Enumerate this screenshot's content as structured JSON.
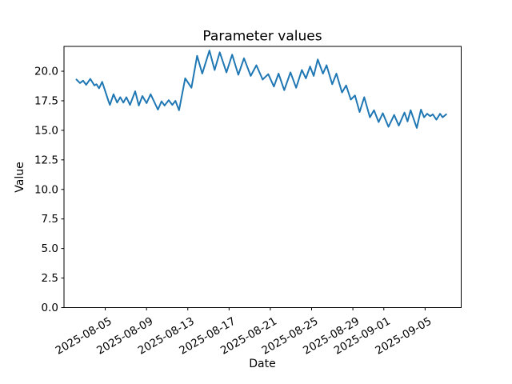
{
  "chart_data": {
    "type": "line",
    "title": "Parameter values",
    "xlabel": "Date",
    "ylabel": "Value",
    "legend": "none",
    "grid": false,
    "background_color": "#ffffff",
    "line_color": "#1f77b4",
    "line_width": 2,
    "x_unit": "days since 2025-08-01 00:00",
    "xlim_days": [
      0,
      38.5
    ],
    "ylim": [
      0,
      22.1
    ],
    "x_ticks": [
      {
        "day": 4,
        "label": "2025-08-05"
      },
      {
        "day": 8,
        "label": "2025-08-09"
      },
      {
        "day": 12,
        "label": "2025-08-13"
      },
      {
        "day": 16,
        "label": "2025-08-17"
      },
      {
        "day": 20,
        "label": "2025-08-21"
      },
      {
        "day": 24,
        "label": "2025-08-25"
      },
      {
        "day": 28,
        "label": "2025-08-29"
      },
      {
        "day": 31,
        "label": "2025-09-01"
      },
      {
        "day": 35,
        "label": "2025-09-05"
      }
    ],
    "x_tick_rotation_deg": 30,
    "y_ticks": [
      {
        "value": 0.0,
        "label": "0.0"
      },
      {
        "value": 2.5,
        "label": "2.5"
      },
      {
        "value": 5.0,
        "label": "5.0"
      },
      {
        "value": 7.5,
        "label": "7.5"
      },
      {
        "value": 10.0,
        "label": "10.0"
      },
      {
        "value": 12.5,
        "label": "12.5"
      },
      {
        "value": 15.0,
        "label": "15.0"
      },
      {
        "value": 17.5,
        "label": "17.5"
      },
      {
        "value": 20.0,
        "label": "20.0"
      }
    ],
    "series": [
      {
        "name": "Parameter values",
        "color": "#1f77b4",
        "x_days": [
          1.2,
          1.55,
          1.85,
          2.15,
          2.55,
          2.95,
          3.15,
          3.4,
          3.7,
          4.3,
          4.45,
          4.8,
          5.15,
          5.45,
          5.75,
          6.05,
          6.4,
          6.9,
          7.25,
          7.6,
          8.0,
          8.4,
          9.1,
          9.45,
          9.75,
          10.15,
          10.5,
          10.8,
          11.15,
          11.75,
          12.35,
          12.9,
          13.4,
          14.1,
          14.6,
          15.1,
          15.75,
          16.3,
          16.9,
          17.45,
          18.1,
          18.65,
          19.25,
          19.8,
          20.35,
          20.8,
          21.35,
          21.95,
          22.5,
          23.05,
          23.45,
          23.85,
          24.2,
          24.6,
          25.1,
          25.45,
          26.0,
          26.4,
          26.95,
          27.35,
          27.8,
          28.2,
          28.65,
          29.1,
          29.65,
          30.05,
          30.5,
          30.9,
          31.45,
          32.0,
          32.45,
          33.0,
          33.3,
          33.6,
          34.2,
          34.6,
          34.9,
          35.2,
          35.5,
          35.75,
          36.1,
          36.45,
          36.7,
          37.05
        ],
        "y": [
          19.3,
          19.0,
          19.2,
          18.85,
          19.35,
          18.8,
          18.9,
          18.55,
          19.1,
          17.5,
          17.15,
          18.05,
          17.35,
          17.8,
          17.35,
          17.8,
          17.15,
          18.3,
          17.1,
          17.9,
          17.3,
          18.05,
          16.75,
          17.45,
          17.1,
          17.55,
          17.15,
          17.5,
          16.7,
          19.4,
          18.6,
          21.3,
          19.8,
          21.75,
          20.1,
          21.6,
          19.9,
          21.4,
          19.7,
          21.1,
          19.6,
          20.5,
          19.3,
          19.75,
          18.7,
          19.8,
          18.4,
          19.9,
          18.6,
          20.1,
          19.4,
          20.4,
          19.6,
          21.0,
          19.8,
          20.5,
          18.9,
          19.8,
          18.2,
          18.8,
          17.6,
          17.95,
          16.55,
          17.8,
          16.1,
          16.7,
          15.7,
          16.45,
          15.3,
          16.3,
          15.4,
          16.5,
          15.75,
          16.7,
          15.2,
          16.75,
          16.1,
          16.4,
          16.2,
          16.35,
          15.9,
          16.4,
          16.1,
          16.35
        ]
      }
    ]
  }
}
